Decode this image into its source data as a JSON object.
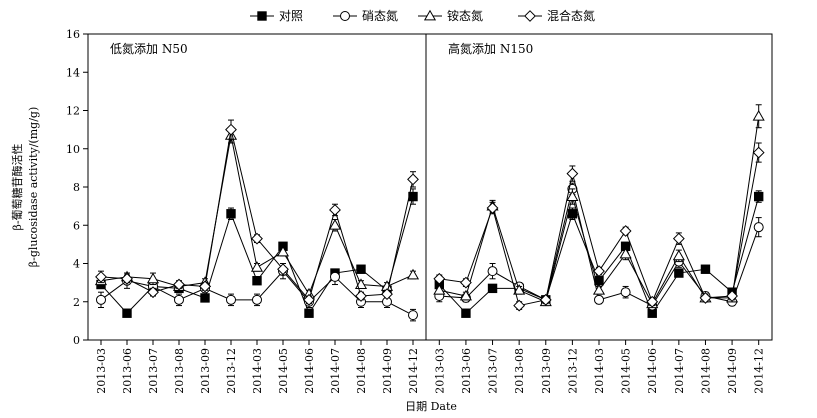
{
  "chart_data": {
    "type": "line",
    "xlabel": "日期 Date",
    "ylabel_line1": "β-葡萄糖苷酶活性",
    "ylabel_line2": "β-glucosidase activity/(mg/g)",
    "ylim": [
      0,
      16
    ],
    "yticks": [
      0,
      2,
      4,
      6,
      8,
      10,
      12,
      14,
      16
    ],
    "categories": [
      "2013-03",
      "2013-06",
      "2013-07",
      "2013-08",
      "2013-09",
      "2013-12",
      "2014-03",
      "2014-05",
      "2014-06",
      "2014-07",
      "2014-08",
      "2014-09",
      "2014-12"
    ],
    "legend_position": "top-center",
    "legend": [
      {
        "name": "对照",
        "marker": "filled-square"
      },
      {
        "name": "硝态氮",
        "marker": "open-circle"
      },
      {
        "name": "铵态氮",
        "marker": "open-triangle"
      },
      {
        "name": "混合态氮",
        "marker": "open-diamond"
      }
    ],
    "panels": [
      {
        "label": "低氮添加 N50",
        "series": [
          {
            "name": "对照",
            "values": [
              2.9,
              1.4,
              2.8,
              2.7,
              2.2,
              6.6,
              3.1,
              4.9,
              1.4,
              3.5,
              3.7,
              2.6,
              7.5
            ],
            "errors": [
              0.2,
              0.1,
              0.2,
              0.2,
              0.2,
              0.3,
              0.2,
              0.2,
              0.1,
              0.2,
              0.2,
              0.2,
              0.4
            ]
          },
          {
            "name": "硝态氮",
            "values": [
              2.1,
              3.1,
              2.8,
              2.1,
              2.7,
              2.1,
              2.1,
              3.6,
              2.0,
              3.3,
              2.0,
              2.0,
              1.3
            ],
            "errors": [
              0.4,
              0.4,
              0.3,
              0.3,
              0.2,
              0.3,
              0.3,
              0.4,
              0.3,
              0.4,
              0.3,
              0.3,
              0.3
            ]
          },
          {
            "name": "铵态氮",
            "values": [
              3.1,
              3.3,
              3.2,
              2.8,
              3.0,
              10.7,
              3.8,
              4.6,
              2.4,
              6.0,
              2.9,
              2.8,
              3.4
            ],
            "errors": [
              0.3,
              0.2,
              0.3,
              0.2,
              0.2,
              0.4,
              0.2,
              0.2,
              0.2,
              0.3,
              0.2,
              0.2,
              0.2
            ]
          },
          {
            "name": "混合态氮",
            "values": [
              3.3,
              3.2,
              2.5,
              2.9,
              2.8,
              11.0,
              5.3,
              3.7,
              2.1,
              6.8,
              2.3,
              2.4,
              8.4
            ],
            "errors": [
              0.3,
              0.2,
              0.2,
              0.2,
              0.2,
              0.5,
              0.2,
              0.3,
              0.2,
              0.3,
              0.2,
              0.2,
              0.4
            ]
          }
        ]
      },
      {
        "label": "高氮添加 N150",
        "series": [
          {
            "name": "对照",
            "values": [
              2.9,
              1.4,
              2.7,
              2.7,
              2.1,
              6.6,
              3.1,
              4.9,
              1.4,
              3.5,
              3.7,
              2.5,
              7.5
            ],
            "errors": [
              0.2,
              0.1,
              0.2,
              0.2,
              0.2,
              0.3,
              0.2,
              0.2,
              0.1,
              0.2,
              0.2,
              0.2,
              0.3
            ]
          },
          {
            "name": "硝态氮",
            "values": [
              2.3,
              2.2,
              3.6,
              2.8,
              2.1,
              7.9,
              2.1,
              2.5,
              1.8,
              4.1,
              2.3,
              2.0,
              5.9
            ],
            "errors": [
              0.3,
              0.2,
              0.4,
              0.2,
              0.2,
              0.3,
              0.2,
              0.3,
              0.2,
              0.3,
              0.2,
              0.2,
              0.5
            ]
          },
          {
            "name": "铵态氮",
            "values": [
              2.6,
              2.3,
              7.0,
              2.6,
              2.0,
              7.5,
              2.6,
              4.5,
              1.9,
              4.4,
              2.2,
              2.2,
              11.7
            ],
            "errors": [
              0.2,
              0.2,
              0.3,
              0.2,
              0.2,
              0.4,
              0.2,
              0.3,
              0.2,
              0.3,
              0.2,
              0.2,
              0.6
            ]
          },
          {
            "name": "混合态氮",
            "values": [
              3.2,
              3.0,
              6.9,
              1.8,
              2.1,
              8.7,
              3.6,
              5.7,
              2.0,
              5.3,
              2.2,
              2.3,
              9.8
            ],
            "errors": [
              0.2,
              0.2,
              0.3,
              0.2,
              0.2,
              0.4,
              0.2,
              0.2,
              0.2,
              0.3,
              0.2,
              0.2,
              0.5
            ]
          }
        ]
      }
    ]
  }
}
